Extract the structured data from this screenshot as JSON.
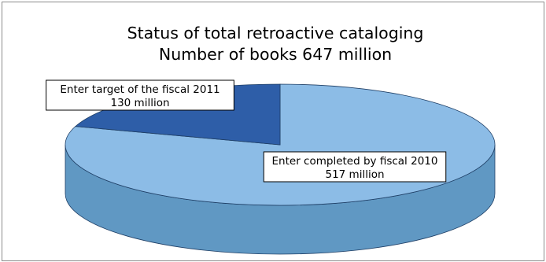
{
  "chart_data": {
    "type": "pie",
    "title": "Status of total retroactive cataloging",
    "subtitle": "Number of books 647 million",
    "slices": [
      {
        "category": "Enter completed by fiscal 2010",
        "value": 517,
        "value_label": "517 million",
        "color": "#8cbce6",
        "side_color": "#6098c3"
      },
      {
        "category": "Enter target of the fiscal 2011",
        "value": 130,
        "value_label": "130 million",
        "color": "#2e5ea8",
        "side_color": "#234a88"
      }
    ],
    "total": 647,
    "legend": "none",
    "style": "3d"
  }
}
